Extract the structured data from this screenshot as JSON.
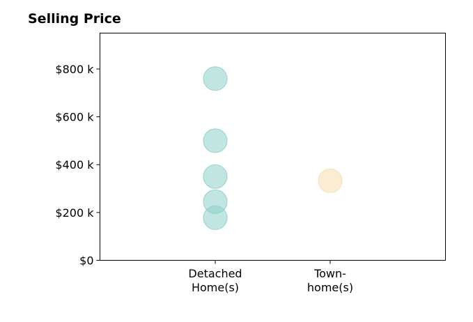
{
  "chart_data": {
    "type": "scatter",
    "title": "Selling Price",
    "categories": [
      "Detached\nHome(s)",
      "Town-\nhome(s)"
    ],
    "series": [
      {
        "category": "Detached\nHome(s)",
        "color": "#8ecfc9",
        "values": [
          760000,
          500000,
          350000,
          245000,
          178000
        ]
      },
      {
        "category": "Town-\nhome(s)",
        "color": "#f5deb0",
        "values": [
          333000
        ]
      }
    ],
    "ylim": [
      0,
      950000
    ],
    "y_ticks": [
      {
        "value": 0,
        "label": "$0"
      },
      {
        "value": 200000,
        "label": "$200 k"
      },
      {
        "value": 400000,
        "label": "$400 k"
      },
      {
        "value": 600000,
        "label": "$600 k"
      },
      {
        "value": 800000,
        "label": "$800 k"
      }
    ],
    "grid": false
  }
}
